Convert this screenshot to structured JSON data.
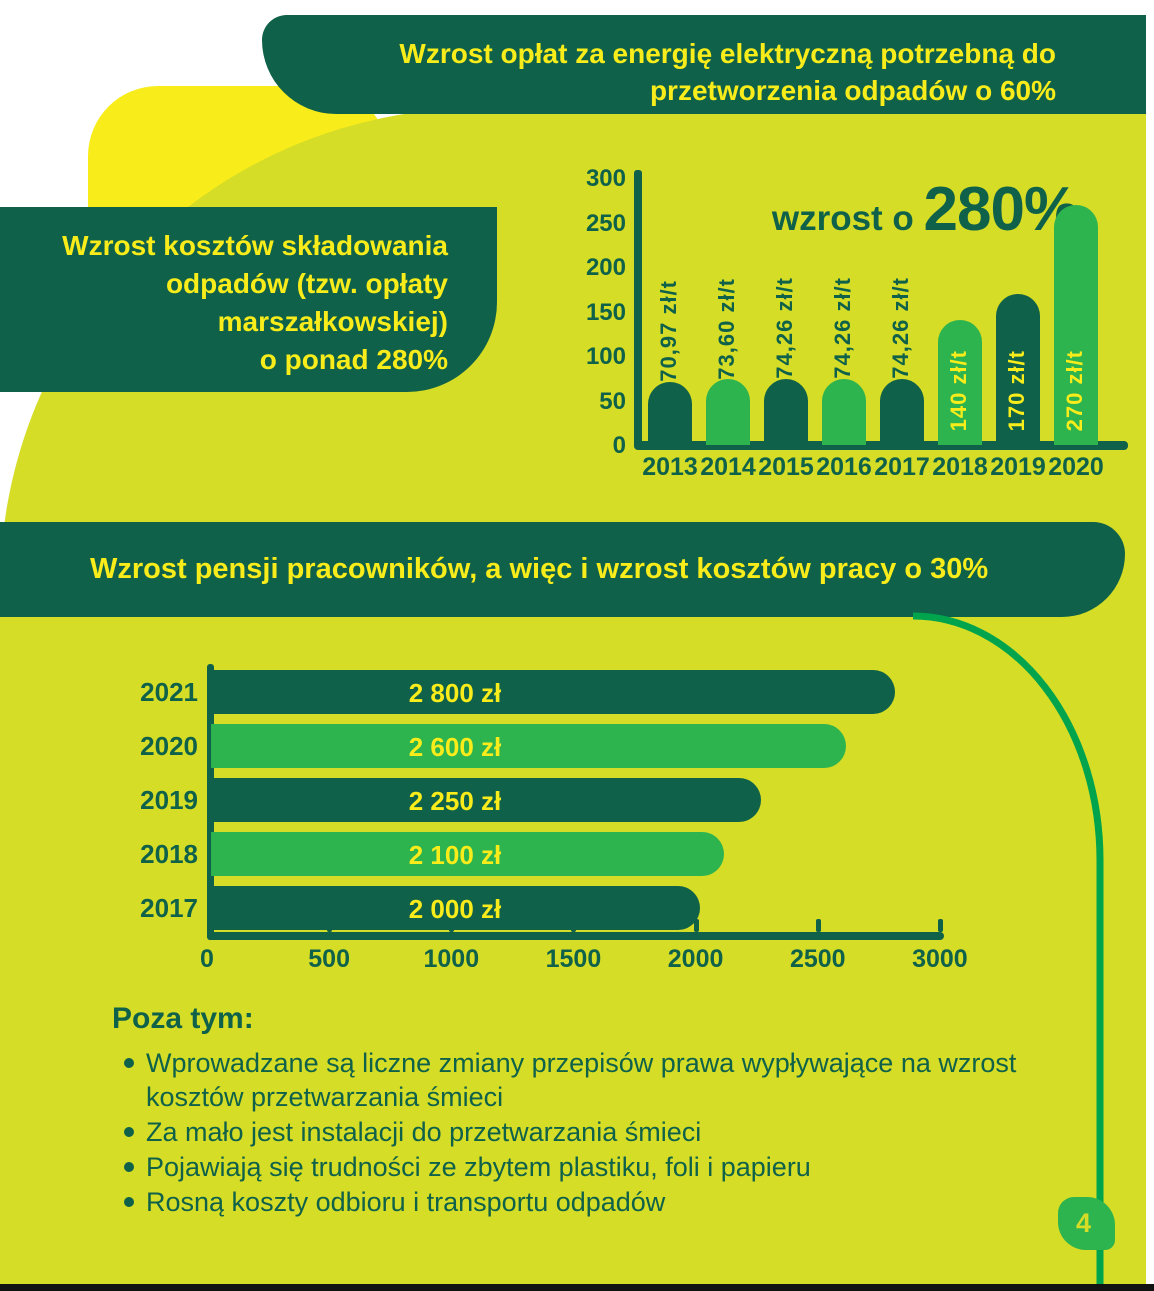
{
  "page": {
    "number": "4"
  },
  "colors": {
    "dark_green": "#0f6149",
    "light_green": "#2eb44e",
    "arc_green": "#00a44d",
    "chartreuse": "#d5dd27",
    "yellow": "#f9ec1b",
    "white": "#ffffff"
  },
  "banners": {
    "top": {
      "line1": "Wzrost opłat za energię elektryczną potrzebną do",
      "line2": "przetworzenia odpadów o 60%"
    },
    "left": {
      "lines": [
        "Wzrost kosztów składowania",
        "odpadów (tzw. opłaty",
        "marszałkowskiej)",
        "o ponad 280%"
      ]
    },
    "middle": {
      "text": "Wzrost pensji pracowników, a więc i wzrost kosztów pracy o 30%"
    }
  },
  "chart_data": [
    {
      "type": "bar",
      "title": "wzrost o 280%",
      "title_prefix": "wzrost o ",
      "title_emphasis": "280%",
      "categories": [
        "2013",
        "2014",
        "2015",
        "2016",
        "2017",
        "2018",
        "2019",
        "2020"
      ],
      "values": [
        70.97,
        73.6,
        74.26,
        74.26,
        74.26,
        140,
        170,
        270
      ],
      "value_labels": [
        "70,97 zł/t",
        "73,60 zł/t",
        "74,26 zł/t",
        "74,26 zł/t",
        "74,26 zł/t",
        "140 zł/t",
        "170 zł/t",
        "270 zł/t"
      ],
      "label_inside_bar": [
        false,
        false,
        false,
        false,
        false,
        true,
        true,
        true
      ],
      "bar_color_keys": [
        "dark_green",
        "light_green",
        "dark_green",
        "light_green",
        "dark_green",
        "light_green",
        "dark_green",
        "light_green"
      ],
      "ylim": [
        0,
        300
      ],
      "yticks": [
        0,
        50,
        100,
        150,
        200,
        250,
        300
      ],
      "xlabel": "",
      "ylabel": "",
      "grid": false,
      "unit": "zł/t"
    },
    {
      "type": "bar",
      "orientation": "horizontal",
      "title": "",
      "categories": [
        "2021",
        "2020",
        "2019",
        "2018",
        "2017"
      ],
      "values": [
        2800,
        2600,
        2250,
        2100,
        2000
      ],
      "value_labels": [
        "2 800 zł",
        "2 600 zł",
        "2 250 zł",
        "2 100 zł",
        "2 000 zł"
      ],
      "bar_color_keys": [
        "dark_green",
        "light_green",
        "dark_green",
        "light_green",
        "dark_green"
      ],
      "xlim": [
        0,
        3000
      ],
      "xticks": [
        0,
        500,
        1000,
        1500,
        2000,
        2500,
        3000
      ],
      "xlabel": "",
      "ylabel": "",
      "grid": false,
      "unit": "zł"
    }
  ],
  "extras": {
    "heading": "Poza tym:",
    "bullets": [
      "Wprowadzane są liczne zmiany przepisów prawa wypływające na wzrost kosztów przetwarzania śmieci",
      "Za mało jest instalacji do przetwarzania śmieci",
      "Pojawiają się trudności ze zbytem plastiku, foli i papieru",
      "Rosną koszty odbioru i transportu odpadów"
    ]
  }
}
